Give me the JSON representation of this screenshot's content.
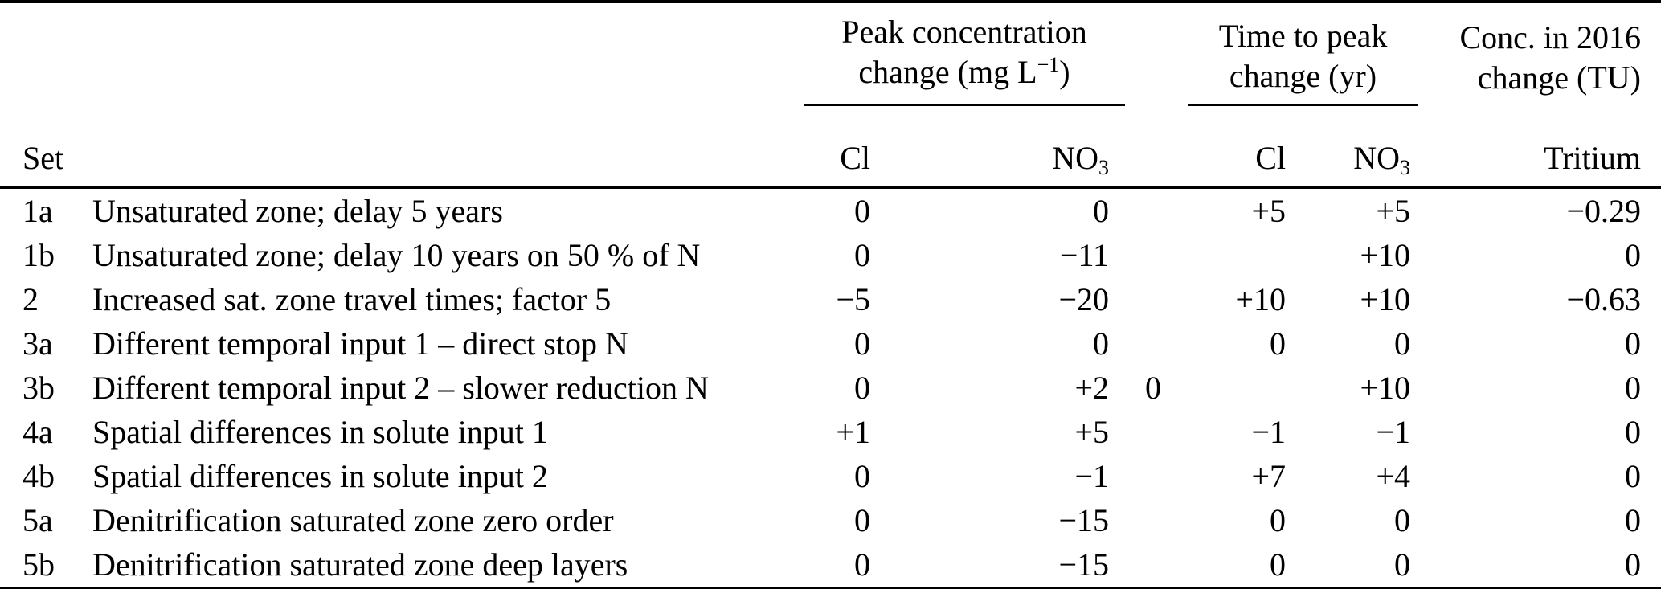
{
  "table": {
    "groups": {
      "peak": {
        "line1": "Peak concentration",
        "line2_pre": "change (mg L",
        "line2_sup": "−1",
        "line2_post": ")"
      },
      "time": {
        "line1": "Time to peak",
        "line2": "change (yr)"
      },
      "conc": {
        "line1": "Conc. in 2016",
        "line2": "change (TU)"
      }
    },
    "subheaders": {
      "set": "Set",
      "cl": "Cl",
      "no3_base": "NO",
      "no3_sub": "3",
      "tritium": "Tritium"
    },
    "rows": [
      {
        "set": "1a",
        "description": "Unsaturated zone; delay 5 years",
        "cl_peak": "0",
        "no3_peak": "0",
        "cl_time": "+5",
        "no3_time": "+5",
        "tritium": "−0.29"
      },
      {
        "set": "1b",
        "description": "Unsaturated zone; delay 10 years on 50 % of N",
        "cl_peak": "0",
        "no3_peak": "−11",
        "cl_time": "",
        "no3_time": "+10",
        "tritium": "0"
      },
      {
        "set": "2",
        "description": "Increased sat. zone travel times; factor 5",
        "cl_peak": "−5",
        "no3_peak": "−20",
        "cl_time": "+10",
        "no3_time": "+10",
        "tritium": "−0.63"
      },
      {
        "set": "3a",
        "description": "Different temporal input 1 – direct stop N",
        "cl_peak": "0",
        "no3_peak": "0",
        "cl_time": "0",
        "no3_time": "0",
        "tritium": "0"
      },
      {
        "set": "3b",
        "description": "Different temporal input 2 – slower reduction N",
        "cl_peak": "0",
        "no3_peak": "+2",
        "cl_time": "0",
        "no3_time": "+10",
        "tritium": "0"
      },
      {
        "set": "4a",
        "description": "Spatial differences in solute input 1",
        "cl_peak": "+1",
        "no3_peak": "+5",
        "cl_time": "−1",
        "no3_time": "−1",
        "tritium": "0"
      },
      {
        "set": "4b",
        "description": "Spatial differences in solute input 2",
        "cl_peak": "0",
        "no3_peak": "−1",
        "cl_time": "+7",
        "no3_time": "+4",
        "tritium": "0"
      },
      {
        "set": "5a",
        "description": "Denitrification saturated zone zero order",
        "cl_peak": "0",
        "no3_peak": "−15",
        "cl_time": "0",
        "no3_time": "0",
        "tritium": "0"
      },
      {
        "set": "5b",
        "description": "Denitrification saturated zone deep layers",
        "cl_peak": "0",
        "no3_peak": "−15",
        "cl_time": "0",
        "no3_time": "0",
        "tritium": "0"
      }
    ]
  },
  "colors": {
    "text": "#000000",
    "background": "#ffffff",
    "rule": "#000000"
  }
}
